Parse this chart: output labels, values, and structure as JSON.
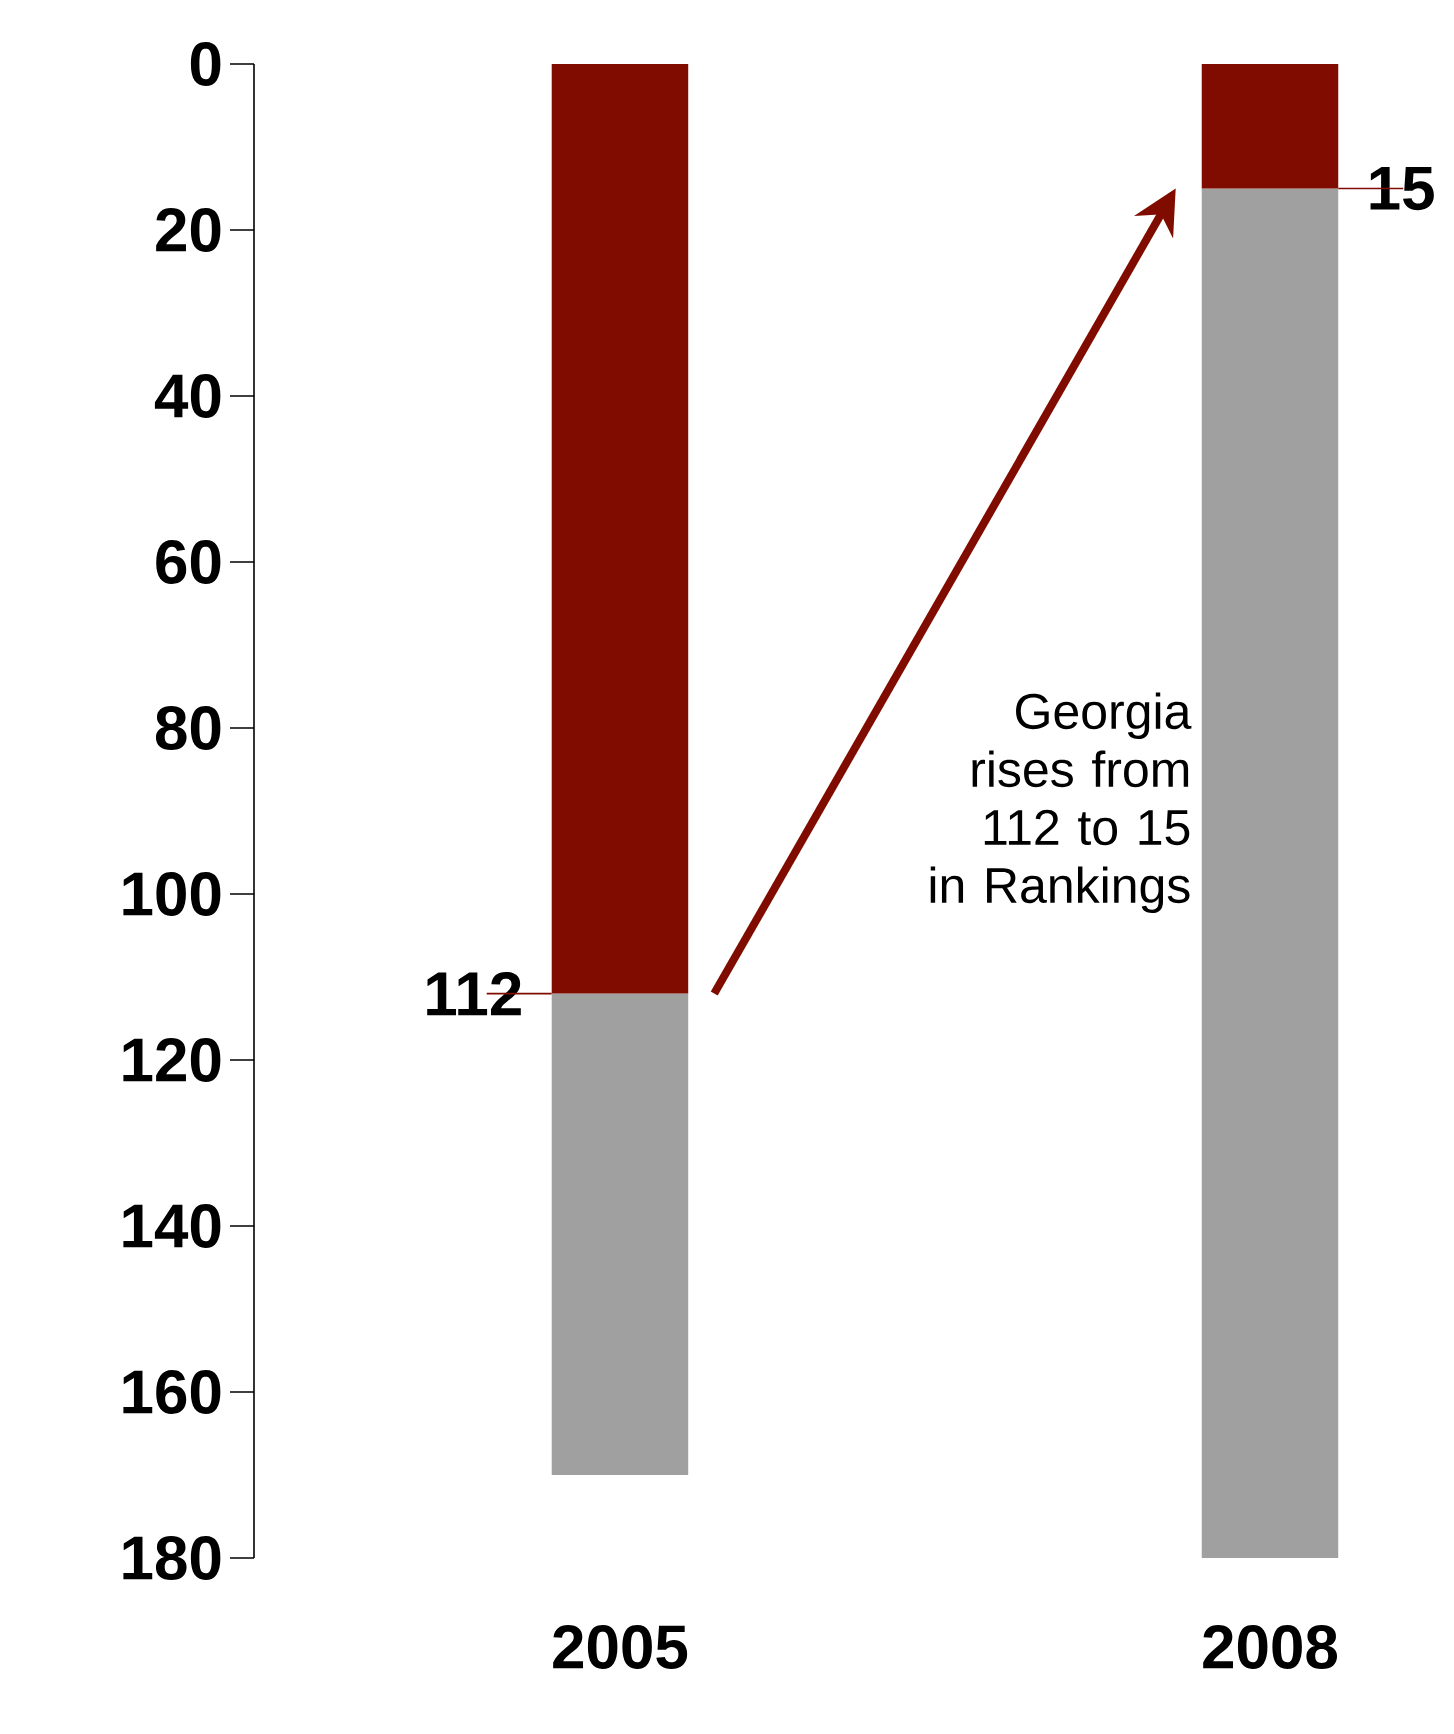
{
  "chart_data": {
    "type": "bar",
    "stacked": true,
    "categories": [
      "2005",
      "2008"
    ],
    "series": [
      {
        "color": "#800c00",
        "values": [
          112,
          15
        ],
        "value_labels": [
          "112",
          "15"
        ]
      },
      {
        "color": "#a0a0a0",
        "values": [
          58,
          165
        ]
      }
    ],
    "ylim": [
      180,
      0
    ],
    "yticks": [
      0,
      20,
      40,
      60,
      80,
      100,
      120,
      140,
      160,
      180
    ],
    "grid": false,
    "annotations": [
      "Georgia rises from 112 to 15 in Rankings"
    ]
  }
}
